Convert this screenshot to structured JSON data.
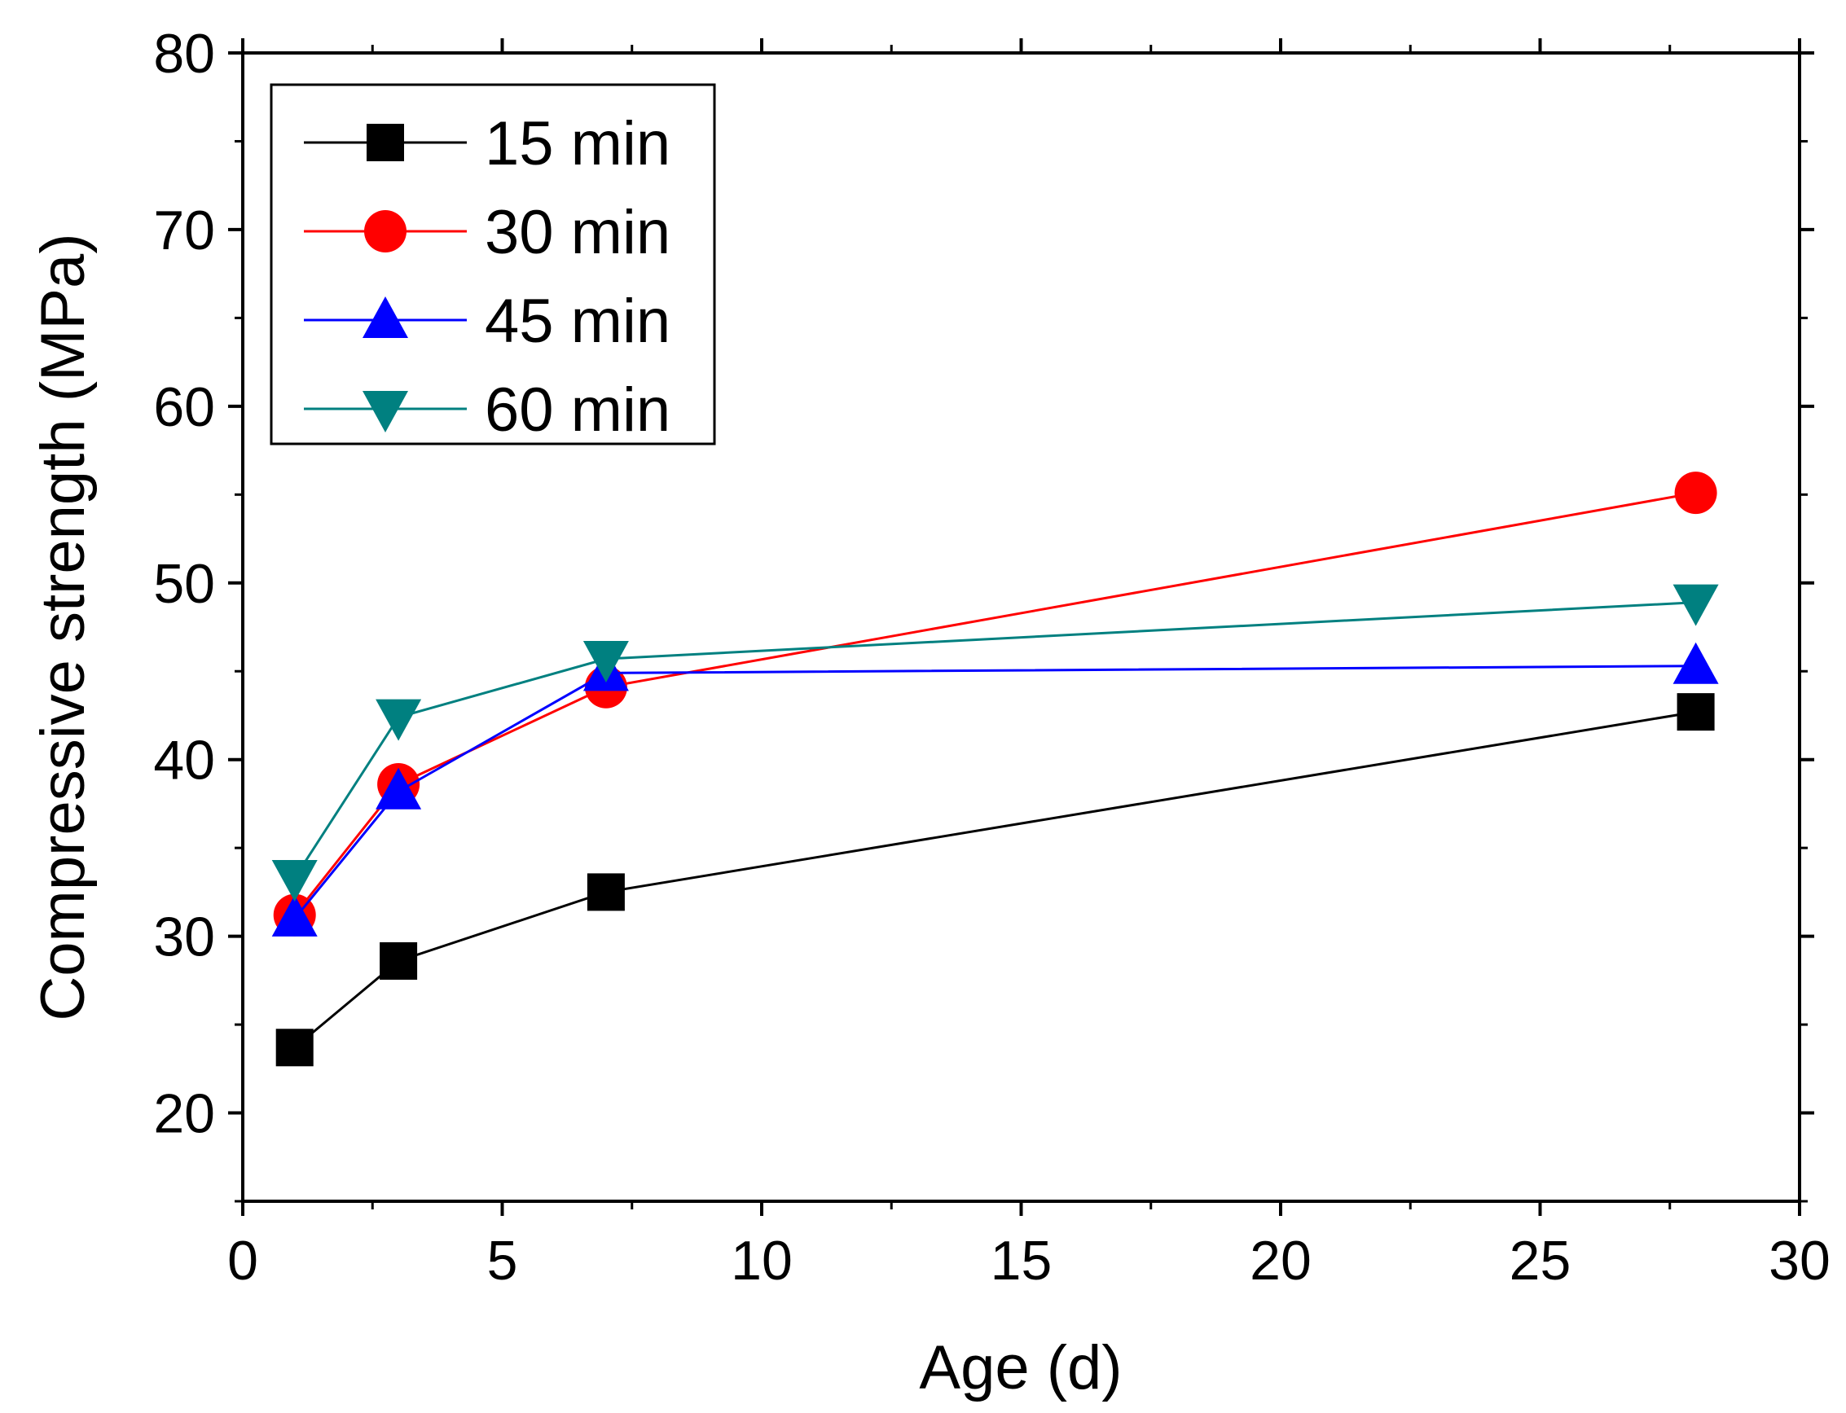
{
  "chart_data": {
    "type": "line",
    "title": "",
    "xlabel": "Age (d)",
    "ylabel": "Compressive strength (MPa)",
    "xlim": [
      0,
      30
    ],
    "ylim": [
      15,
      80
    ],
    "x_ticks": [
      0,
      5,
      10,
      15,
      20,
      25,
      30
    ],
    "y_ticks": [
      20,
      30,
      40,
      50,
      60,
      70,
      80
    ],
    "x_tick_labels": [
      "0",
      "5",
      "10",
      "15",
      "20",
      "25",
      "30"
    ],
    "y_tick_labels": [
      "20",
      "30",
      "40",
      "50",
      "60",
      "70",
      "80"
    ],
    "grid": false,
    "legend_position": "top-left",
    "x": [
      1,
      3,
      7,
      28
    ],
    "series": [
      {
        "name": "15 min",
        "values": [
          23.7,
          28.6,
          32.5,
          42.7
        ],
        "color": "#000000",
        "marker": "square"
      },
      {
        "name": "30 min",
        "values": [
          31.2,
          38.6,
          44.1,
          55.1
        ],
        "color": "#ff0000",
        "marker": "circle"
      },
      {
        "name": "45 min",
        "values": [
          31.0,
          38.2,
          44.9,
          45.3
        ],
        "color": "#0000ff",
        "marker": "triangle-up"
      },
      {
        "name": "60 min",
        "values": [
          33.3,
          42.4,
          45.7,
          48.9
        ],
        "color": "#008080",
        "marker": "triangle-down"
      }
    ]
  }
}
